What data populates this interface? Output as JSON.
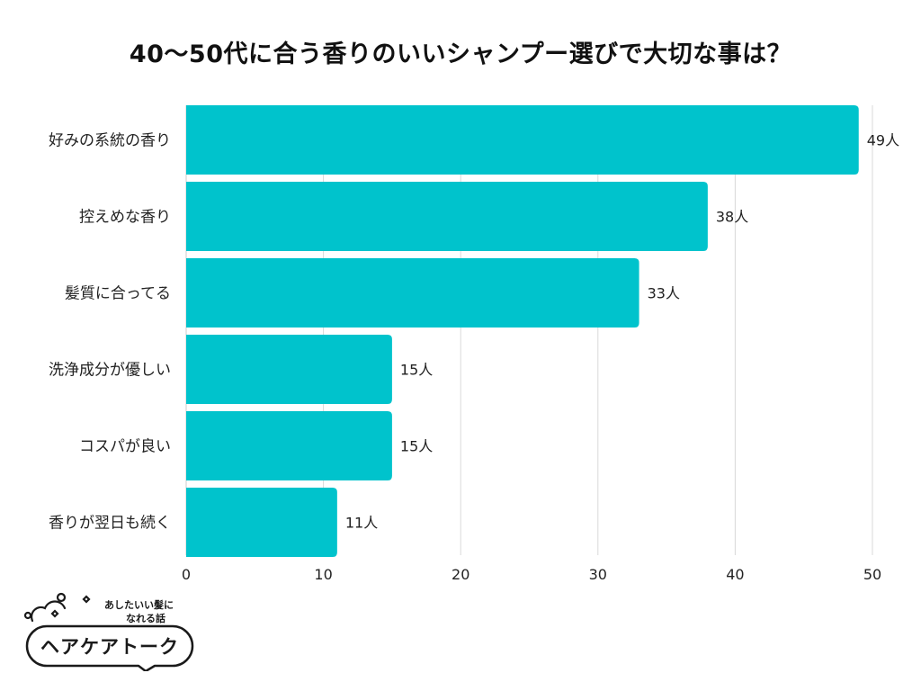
{
  "title": "40〜50代に合う香りのいいシャンプー選びで大切な事は？",
  "logo": {
    "tagline_line1": "あしたいい髪に",
    "tagline_line2": "なれる話",
    "name": "ヘアケアトーク"
  },
  "chart_data": {
    "type": "bar",
    "orientation": "horizontal",
    "categories": [
      "好みの系統の香り",
      "控えめな香り",
      "髪質に合ってる",
      "洗浄成分が優しい",
      "コスパが良い",
      "香りが翌日も続く"
    ],
    "values": [
      49,
      38,
      33,
      15,
      15,
      11
    ],
    "value_labels": [
      "49人",
      "38人",
      "33人",
      "15人",
      "15人",
      "11人"
    ],
    "xticks": [
      0,
      10,
      20,
      30,
      40,
      50
    ],
    "xlim": [
      0,
      50
    ],
    "grid": true,
    "bar_color": "#00C3CC",
    "grid_color": "#d9d9d9"
  }
}
